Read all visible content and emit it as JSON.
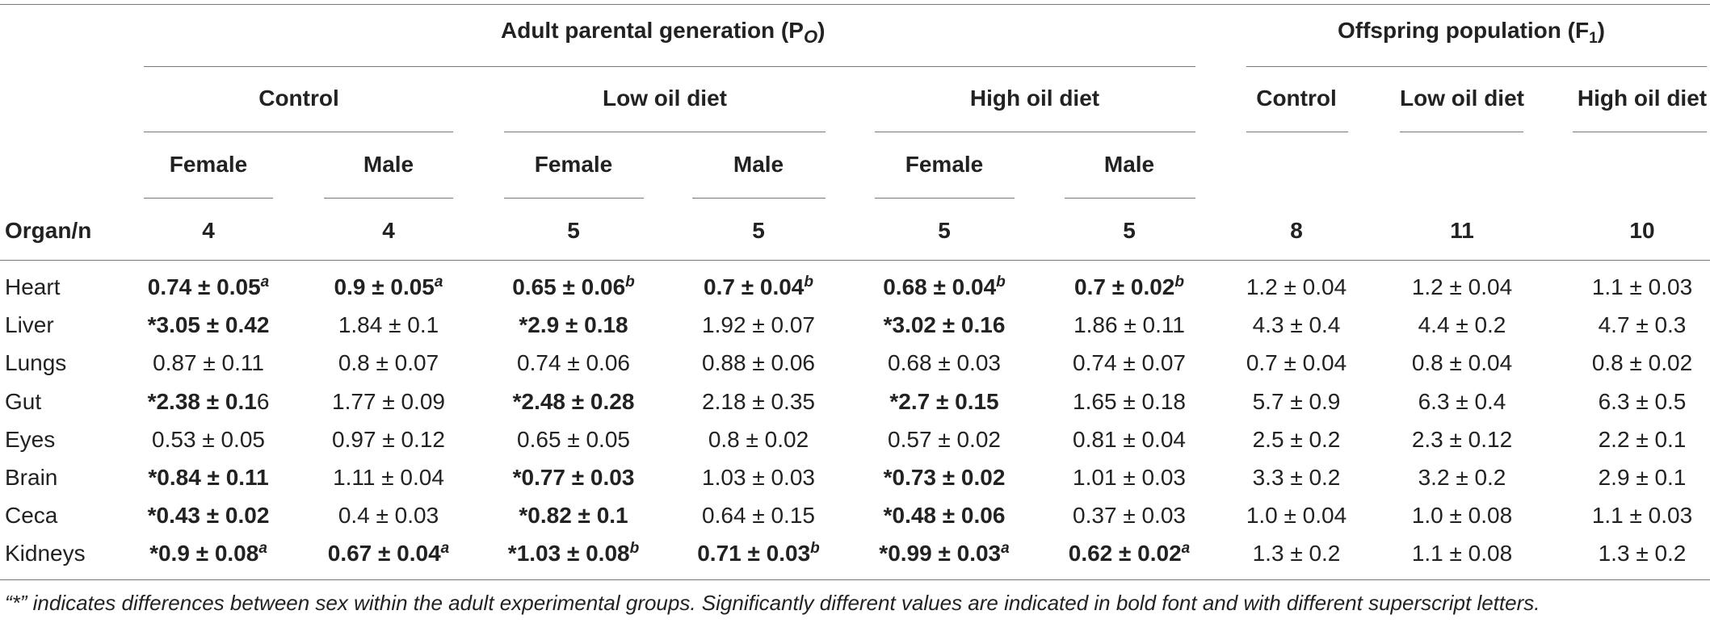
{
  "header": {
    "adult_group_prefix": "Adult parental generation (P",
    "adult_group_sub": "O",
    "adult_group_suffix": ")",
    "offspring_group_prefix": "Offspring population (F",
    "offspring_group_sub": "1",
    "offspring_group_suffix": ")",
    "treatments": [
      "Control",
      "Low oil diet",
      "High oil diet"
    ],
    "offspring_treatments": [
      "Control",
      "Low oil diet",
      "High oil diet"
    ],
    "sexes": [
      "Female",
      "Male",
      "Female",
      "Male",
      "Female",
      "Male"
    ],
    "organ_n_label": "Organ/n",
    "n_values": [
      "4",
      "4",
      "5",
      "5",
      "5",
      "5",
      "8",
      "11",
      "10"
    ]
  },
  "rows": [
    {
      "organ": "Heart",
      "cells": [
        {
          "star": "",
          "val": "0.74 ± 0.05",
          "sup": "a",
          "bold": true,
          "extra": ""
        },
        {
          "star": "",
          "val": "0.9 ± 0.05",
          "sup": "a",
          "bold": true,
          "extra": ""
        },
        {
          "star": "",
          "val": "0.65 ± 0.06",
          "sup": "b",
          "bold": true,
          "extra": ""
        },
        {
          "star": "",
          "val": "0.7 ± 0.04",
          "sup": "b",
          "bold": true,
          "extra": ""
        },
        {
          "star": "",
          "val": "0.68 ± 0.04",
          "sup": "b",
          "bold": true,
          "extra": ""
        },
        {
          "star": "",
          "val": "0.7 ± 0.02",
          "sup": "b",
          "bold": true,
          "extra": ""
        },
        {
          "star": "",
          "val": "1.2 ± 0.04",
          "sup": "",
          "bold": false,
          "extra": ""
        },
        {
          "star": "",
          "val": "1.2 ± 0.04",
          "sup": "",
          "bold": false,
          "extra": ""
        },
        {
          "star": "",
          "val": "1.1 ± 0.03",
          "sup": "",
          "bold": false,
          "extra": ""
        }
      ]
    },
    {
      "organ": "Liver",
      "cells": [
        {
          "star": "*",
          "val": "3.05 ± 0.42",
          "sup": "",
          "bold": true,
          "extra": ""
        },
        {
          "star": "",
          "val": "1.84 ± 0.1",
          "sup": "",
          "bold": false,
          "extra": ""
        },
        {
          "star": "*",
          "val": "2.9 ± 0.18",
          "sup": "",
          "bold": true,
          "extra": ""
        },
        {
          "star": "",
          "val": "1.92 ± 0.07",
          "sup": "",
          "bold": false,
          "extra": ""
        },
        {
          "star": "*",
          "val": "3.02 ± 0.16",
          "sup": "",
          "bold": true,
          "extra": ""
        },
        {
          "star": "",
          "val": "1.86 ± 0.11",
          "sup": "",
          "bold": false,
          "extra": ""
        },
        {
          "star": "",
          "val": "4.3 ± 0.4",
          "sup": "",
          "bold": false,
          "extra": ""
        },
        {
          "star": "",
          "val": "4.4 ± 0.2",
          "sup": "",
          "bold": false,
          "extra": ""
        },
        {
          "star": "",
          "val": "4.7 ± 0.3",
          "sup": "",
          "bold": false,
          "extra": ""
        }
      ]
    },
    {
      "organ": "Lungs",
      "cells": [
        {
          "star": "",
          "val": "0.87 ± 0.11",
          "sup": "",
          "bold": false,
          "extra": ""
        },
        {
          "star": "",
          "val": "0.8 ± 0.07",
          "sup": "",
          "bold": false,
          "extra": ""
        },
        {
          "star": "",
          "val": "0.74 ± 0.06",
          "sup": "",
          "bold": false,
          "extra": ""
        },
        {
          "star": "",
          "val": "0.88 ± 0.06",
          "sup": "",
          "bold": false,
          "extra": ""
        },
        {
          "star": "",
          "val": "0.68 ± 0.03",
          "sup": "",
          "bold": false,
          "extra": ""
        },
        {
          "star": "",
          "val": "0.74 ± 0.07",
          "sup": "",
          "bold": false,
          "extra": ""
        },
        {
          "star": "",
          "val": "0.7 ± 0.04",
          "sup": "",
          "bold": false,
          "extra": ""
        },
        {
          "star": "",
          "val": "0.8 ± 0.04",
          "sup": "",
          "bold": false,
          "extra": ""
        },
        {
          "star": "",
          "val": "0.8 ± 0.02",
          "sup": "",
          "bold": false,
          "extra": ""
        }
      ]
    },
    {
      "organ": "Gut",
      "cells": [
        {
          "star": "*",
          "val": "2.38 ± 0.1",
          "sup": "",
          "bold": true,
          "extra": "6"
        },
        {
          "star": "",
          "val": "1.77 ± 0.09",
          "sup": "",
          "bold": false,
          "extra": ""
        },
        {
          "star": "*",
          "val": "2.48 ± 0.28",
          "sup": "",
          "bold": true,
          "extra": ""
        },
        {
          "star": "",
          "val": "2.18 ± 0.35",
          "sup": "",
          "bold": false,
          "extra": ""
        },
        {
          "star": "*",
          "val": "2.7 ± 0.15",
          "sup": "",
          "bold": true,
          "extra": ""
        },
        {
          "star": "",
          "val": "1.65 ± 0.18",
          "sup": "",
          "bold": false,
          "extra": ""
        },
        {
          "star": "",
          "val": "5.7 ± 0.9",
          "sup": "",
          "bold": false,
          "extra": ""
        },
        {
          "star": "",
          "val": "6.3 ± 0.4",
          "sup": "",
          "bold": false,
          "extra": ""
        },
        {
          "star": "",
          "val": "6.3 ± 0.5",
          "sup": "",
          "bold": false,
          "extra": ""
        }
      ]
    },
    {
      "organ": "Eyes",
      "cells": [
        {
          "star": "",
          "val": "0.53 ± 0.05",
          "sup": "",
          "bold": false,
          "extra": ""
        },
        {
          "star": "",
          "val": "0.97 ± 0.12",
          "sup": "",
          "bold": false,
          "extra": ""
        },
        {
          "star": "",
          "val": "0.65 ± 0.05",
          "sup": "",
          "bold": false,
          "extra": ""
        },
        {
          "star": "",
          "val": "0.8 ± 0.02",
          "sup": "",
          "bold": false,
          "extra": ""
        },
        {
          "star": "",
          "val": "0.57 ± 0.02",
          "sup": "",
          "bold": false,
          "extra": ""
        },
        {
          "star": "",
          "val": "0.81 ± 0.04",
          "sup": "",
          "bold": false,
          "extra": ""
        },
        {
          "star": "",
          "val": "2.5 ± 0.2",
          "sup": "",
          "bold": false,
          "extra": ""
        },
        {
          "star": "",
          "val": "2.3 ± 0.12",
          "sup": "",
          "bold": false,
          "extra": ""
        },
        {
          "star": "",
          "val": "2.2 ± 0.1",
          "sup": "",
          "bold": false,
          "extra": ""
        }
      ]
    },
    {
      "organ": "Brain",
      "cells": [
        {
          "star": "*",
          "val": "0.84 ± 0.11",
          "sup": "",
          "bold": true,
          "extra": ""
        },
        {
          "star": "",
          "val": "1.11 ± 0.04",
          "sup": "",
          "bold": false,
          "extra": ""
        },
        {
          "star": "*",
          "val": "0.77 ± 0.03",
          "sup": "",
          "bold": true,
          "extra": ""
        },
        {
          "star": "",
          "val": "1.03 ± 0.03",
          "sup": "",
          "bold": false,
          "extra": ""
        },
        {
          "star": "*",
          "val": "0.73 ± 0.02",
          "sup": "",
          "bold": true,
          "extra": ""
        },
        {
          "star": "",
          "val": "1.01 ± 0.03",
          "sup": "",
          "bold": false,
          "extra": ""
        },
        {
          "star": "",
          "val": "3.3 ± 0.2",
          "sup": "",
          "bold": false,
          "extra": ""
        },
        {
          "star": "",
          "val": "3.2 ± 0.2",
          "sup": "",
          "bold": false,
          "extra": ""
        },
        {
          "star": "",
          "val": "2.9 ± 0.1",
          "sup": "",
          "bold": false,
          "extra": ""
        }
      ]
    },
    {
      "organ": "Ceca",
      "cells": [
        {
          "star": "*",
          "val": "0.43 ± 0.02",
          "sup": "",
          "bold": true,
          "extra": ""
        },
        {
          "star": "",
          "val": "0.4 ± 0.03",
          "sup": "",
          "bold": false,
          "extra": ""
        },
        {
          "star": "*",
          "val": "0.82 ± 0.1",
          "sup": "",
          "bold": true,
          "extra": ""
        },
        {
          "star": "",
          "val": "0.64 ± 0.15",
          "sup": "",
          "bold": false,
          "extra": ""
        },
        {
          "star": "*",
          "val": "0.48 ± 0.06",
          "sup": "",
          "bold": true,
          "extra": ""
        },
        {
          "star": "",
          "val": "0.37 ± 0.03",
          "sup": "",
          "bold": false,
          "extra": ""
        },
        {
          "star": "",
          "val": "1.0 ± 0.04",
          "sup": "",
          "bold": false,
          "extra": ""
        },
        {
          "star": "",
          "val": "1.0 ± 0.08",
          "sup": "",
          "bold": false,
          "extra": ""
        },
        {
          "star": "",
          "val": "1.1 ± 0.03",
          "sup": "",
          "bold": false,
          "extra": ""
        }
      ]
    },
    {
      "organ": "Kidneys",
      "cells": [
        {
          "star": "*",
          "val": "0.9 ± 0.08",
          "sup": "a",
          "bold": true,
          "extra": ""
        },
        {
          "star": "",
          "val": "0.67 ± 0.04",
          "sup": "a",
          "bold": true,
          "extra": ""
        },
        {
          "star": "*",
          "val": "1.03 ± 0.08",
          "sup": "b",
          "bold": true,
          "extra": ""
        },
        {
          "star": "",
          "val": "0.71 ± 0.03",
          "sup": "b",
          "bold": true,
          "extra": ""
        },
        {
          "star": "*",
          "val": "0.99 ± 0.03",
          "sup": "a",
          "bold": true,
          "extra": ""
        },
        {
          "star": "",
          "val": "0.62 ± 0.02",
          "sup": "a",
          "bold": true,
          "extra": ""
        },
        {
          "star": "",
          "val": "1.3 ± 0.2",
          "sup": "",
          "bold": false,
          "extra": ""
        },
        {
          "star": "",
          "val": "1.1 ± 0.08",
          "sup": "",
          "bold": false,
          "extra": ""
        },
        {
          "star": "",
          "val": "1.3 ± 0.2",
          "sup": "",
          "bold": false,
          "extra": ""
        }
      ]
    }
  ],
  "caption": "“*” indicates differences between sex within the adult experimental groups. Significantly different values are indicated in bold font and with different superscript letters."
}
